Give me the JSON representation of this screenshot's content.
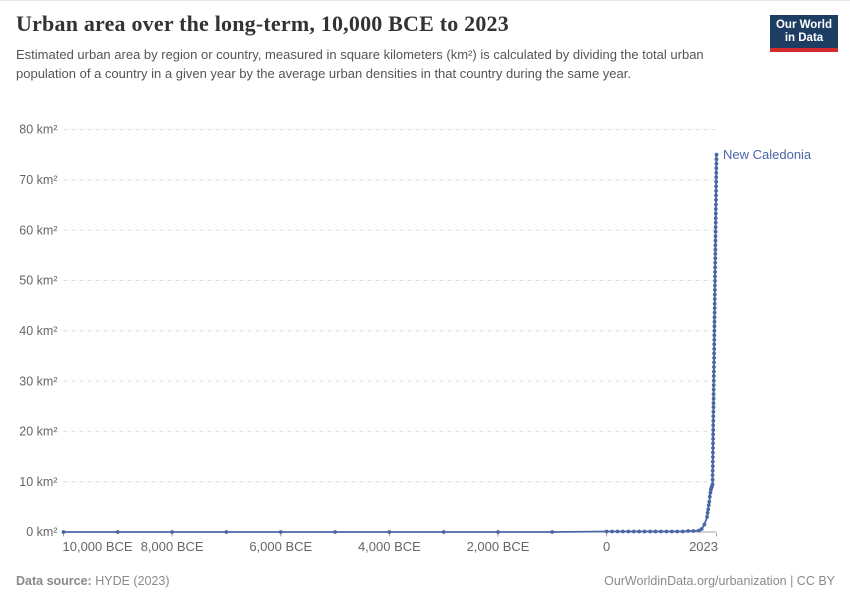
{
  "header": {
    "title": "Urban area over the long-term, 10,000 BCE to 2023",
    "subtitle": "Estimated urban area by region or country, measured in square kilometers (km²) is calculated by dividing the total urban population of a country in a given year by the average urban densities in that country during the same year.",
    "logo": {
      "line1": "Our World",
      "line2": "in Data"
    }
  },
  "footer": {
    "source_label": "Data source:",
    "source_value": " HYDE (2023)",
    "link": "OurWorldinData.org/urbanization | CC BY"
  },
  "colors": {
    "line": "#4b66a5",
    "series_label": "#4b66a5",
    "grid": "#dedede",
    "axis": "#a1a1a1",
    "tick_text": "#666666",
    "title": "#333333",
    "subtitle": "#555555",
    "logo_bg": "#1d3d63",
    "logo_accent": "#d42b2f",
    "footer_text": "#8a8a8a"
  },
  "chart_data": {
    "type": "line",
    "title": "Urban area over the long-term, 10,000 BCE to 2023",
    "xlabel": "",
    "ylabel": "km²",
    "xlim": [
      -10000,
      2023
    ],
    "ylim": [
      0,
      80
    ],
    "grid": "horizontal-dashed",
    "x_ticks": [
      {
        "value": -10000,
        "label": "10,000 BCE"
      },
      {
        "value": -8000,
        "label": "8,000 BCE"
      },
      {
        "value": -6000,
        "label": "6,000 BCE"
      },
      {
        "value": -4000,
        "label": "4,000 BCE"
      },
      {
        "value": -2000,
        "label": "2,000 BCE"
      },
      {
        "value": 0,
        "label": "0"
      },
      {
        "value": 2023,
        "label": "2023"
      }
    ],
    "y_ticks": [
      {
        "value": 0,
        "label": "0 km²"
      },
      {
        "value": 10,
        "label": "10 km²"
      },
      {
        "value": 20,
        "label": "20 km²"
      },
      {
        "value": 30,
        "label": "30 km²"
      },
      {
        "value": 40,
        "label": "40 km²"
      },
      {
        "value": 50,
        "label": "50 km²"
      },
      {
        "value": 60,
        "label": "60 km²"
      },
      {
        "value": 70,
        "label": "70 km²"
      },
      {
        "value": 80,
        "label": "80 km²"
      }
    ],
    "series": [
      {
        "name": "New Caledonia",
        "end_label": "New Caledonia",
        "points": [
          [
            -10000,
            0
          ],
          [
            -9000,
            0
          ],
          [
            -8000,
            0
          ],
          [
            -7000,
            0
          ],
          [
            -6000,
            0
          ],
          [
            -5000,
            0
          ],
          [
            -4000,
            0
          ],
          [
            -3000,
            0
          ],
          [
            -2000,
            0
          ],
          [
            -1000,
            0
          ],
          [
            0,
            0.1
          ],
          [
            100,
            0.1
          ],
          [
            200,
            0.1
          ],
          [
            300,
            0.1
          ],
          [
            400,
            0.1
          ],
          [
            500,
            0.1
          ],
          [
            600,
            0.1
          ],
          [
            700,
            0.1
          ],
          [
            800,
            0.1
          ],
          [
            900,
            0.1
          ],
          [
            1000,
            0.1
          ],
          [
            1100,
            0.1
          ],
          [
            1200,
            0.1
          ],
          [
            1300,
            0.1
          ],
          [
            1400,
            0.1
          ],
          [
            1500,
            0.2
          ],
          [
            1600,
            0.2
          ],
          [
            1700,
            0.3
          ],
          [
            1750,
            0.6
          ],
          [
            1800,
            1.5
          ],
          [
            1850,
            3.0
          ],
          [
            1860,
            3.8
          ],
          [
            1870,
            4.5
          ],
          [
            1880,
            5.3
          ],
          [
            1890,
            6.0
          ],
          [
            1900,
            7.0
          ],
          [
            1910,
            7.8
          ],
          [
            1920,
            8.4
          ],
          [
            1930,
            8.8
          ],
          [
            1940,
            9.1
          ],
          [
            1950,
            9.5
          ],
          [
            1951,
            10.4
          ],
          [
            1952,
            11.3
          ],
          [
            1953,
            12.2
          ],
          [
            1954,
            13.1
          ],
          [
            1955,
            14.0
          ],
          [
            1956,
            14.9
          ],
          [
            1957,
            15.8
          ],
          [
            1958,
            16.7
          ],
          [
            1959,
            17.6
          ],
          [
            1960,
            18.5
          ],
          [
            1961,
            19.4
          ],
          [
            1962,
            20.3
          ],
          [
            1963,
            21.2
          ],
          [
            1964,
            22.1
          ],
          [
            1965,
            23.0
          ],
          [
            1966,
            23.9
          ],
          [
            1967,
            24.8
          ],
          [
            1968,
            25.6
          ],
          [
            1969,
            26.5
          ],
          [
            1970,
            27.4
          ],
          [
            1971,
            28.3
          ],
          [
            1972,
            29.2
          ],
          [
            1973,
            30.1
          ],
          [
            1974,
            31.0
          ],
          [
            1975,
            31.9
          ],
          [
            1976,
            32.8
          ],
          [
            1977,
            33.7
          ],
          [
            1978,
            34.6
          ],
          [
            1979,
            35.5
          ],
          [
            1980,
            36.4
          ],
          [
            1981,
            37.3
          ],
          [
            1982,
            38.2
          ],
          [
            1983,
            39.1
          ],
          [
            1984,
            40.0
          ],
          [
            1985,
            40.9
          ],
          [
            1986,
            41.8
          ],
          [
            1987,
            42.7
          ],
          [
            1988,
            43.6
          ],
          [
            1989,
            44.5
          ],
          [
            1990,
            45.4
          ],
          [
            1991,
            46.3
          ],
          [
            1992,
            47.2
          ],
          [
            1993,
            48.1
          ],
          [
            1994,
            49.0
          ],
          [
            1995,
            49.9
          ],
          [
            1996,
            50.8
          ],
          [
            1997,
            51.7
          ],
          [
            1998,
            52.6
          ],
          [
            1999,
            53.5
          ],
          [
            2000,
            54.4
          ],
          [
            2001,
            55.3
          ],
          [
            2002,
            56.1
          ],
          [
            2003,
            57.0
          ],
          [
            2004,
            57.9
          ],
          [
            2005,
            58.8
          ],
          [
            2006,
            59.7
          ],
          [
            2007,
            60.6
          ],
          [
            2008,
            61.5
          ],
          [
            2009,
            62.4
          ],
          [
            2010,
            63.3
          ],
          [
            2011,
            64.2
          ],
          [
            2012,
            65.1
          ],
          [
            2013,
            66.0
          ],
          [
            2014,
            66.9
          ],
          [
            2015,
            67.8
          ],
          [
            2016,
            68.7
          ],
          [
            2017,
            69.6
          ],
          [
            2018,
            70.5
          ],
          [
            2019,
            71.4
          ],
          [
            2020,
            72.3
          ],
          [
            2021,
            73.2
          ],
          [
            2022,
            74.1
          ],
          [
            2023,
            75.0
          ]
        ]
      }
    ]
  }
}
